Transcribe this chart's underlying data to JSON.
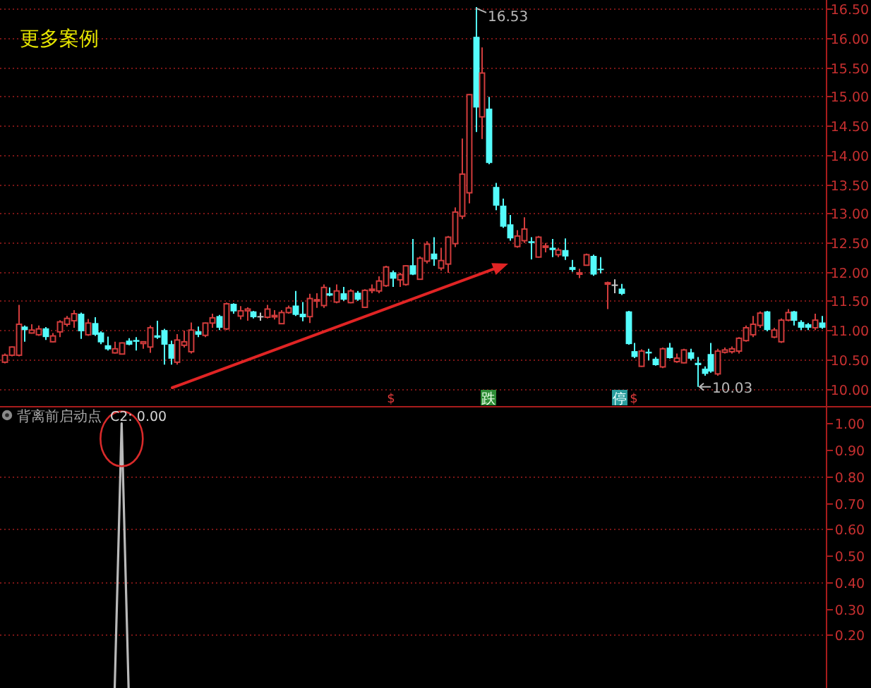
{
  "chart_data": [
    {
      "type": "candlestick",
      "title": "更多案例",
      "categories": [
        null,
        null,
        null,
        null,
        null,
        null,
        null,
        null,
        null,
        null,
        null,
        null,
        null,
        null,
        null,
        null,
        null,
        null,
        null,
        null,
        null,
        null,
        null,
        null,
        null,
        null,
        null,
        null,
        null,
        null,
        null,
        null,
        null,
        null,
        null,
        null,
        null,
        null,
        null,
        null,
        null,
        null,
        null,
        null,
        null,
        null,
        null,
        null,
        null,
        null,
        null,
        null,
        null,
        null,
        null,
        null,
        null,
        null,
        null,
        null,
        null,
        null,
        null,
        null,
        null,
        null,
        null,
        null,
        null,
        null,
        null,
        null,
        null,
        null,
        null,
        null,
        null,
        null,
        null,
        null,
        null,
        null,
        null,
        null,
        null,
        null,
        null,
        null,
        null,
        null,
        null,
        null,
        null,
        null,
        null,
        null,
        null,
        null,
        null,
        null,
        null,
        null,
        null,
        null,
        null,
        null,
        null,
        null,
        null,
        null,
        null,
        null,
        null,
        null,
        null,
        null,
        null,
        null,
        null
      ],
      "ohlc": [
        [
          10.45,
          10.6,
          10.43,
          10.57
        ],
        [
          10.57,
          10.72,
          10.55,
          10.71
        ],
        [
          10.57,
          11.43,
          10.55,
          11.1
        ],
        [
          11.06,
          11.08,
          10.8,
          11.0
        ],
        [
          10.95,
          11.1,
          10.94,
          11.0
        ],
        [
          10.92,
          11.08,
          10.9,
          11.02
        ],
        [
          11.03,
          11.05,
          10.83,
          10.88
        ],
        [
          10.8,
          10.95,
          10.79,
          10.9
        ],
        [
          10.97,
          11.17,
          10.88,
          11.14
        ],
        [
          11.1,
          11.24,
          11.06,
          11.2
        ],
        [
          11.16,
          11.34,
          11.04,
          11.28
        ],
        [
          11.28,
          11.3,
          10.85,
          10.98
        ],
        [
          10.92,
          11.19,
          10.9,
          11.12
        ],
        [
          11.12,
          11.22,
          10.9,
          10.92
        ],
        [
          10.96,
          10.98,
          10.76,
          10.79
        ],
        [
          10.74,
          10.89,
          10.65,
          10.67
        ],
        [
          10.61,
          10.8,
          10.6,
          10.68
        ],
        [
          10.59,
          10.79,
          10.59,
          10.78
        ],
        [
          10.82,
          10.86,
          10.74,
          10.75
        ],
        [
          10.83,
          10.88,
          10.65,
          10.8
        ],
        [
          10.77,
          10.8,
          10.68,
          10.8
        ],
        [
          10.71,
          11.08,
          10.61,
          11.04
        ],
        [
          10.91,
          11.16,
          10.85,
          10.87
        ],
        [
          11.0,
          11.02,
          10.41,
          10.75
        ],
        [
          10.76,
          10.82,
          10.41,
          10.51
        ],
        [
          10.45,
          10.93,
          10.41,
          10.83
        ],
        [
          10.74,
          10.99,
          10.7,
          10.8
        ],
        [
          10.63,
          11.13,
          10.6,
          11.0
        ],
        [
          10.98,
          11.06,
          10.88,
          10.92
        ],
        [
          10.91,
          11.13,
          10.88,
          11.12
        ],
        [
          11.12,
          11.28,
          11.04,
          11.21
        ],
        [
          11.24,
          11.26,
          11.0,
          11.04
        ],
        [
          11.02,
          11.47,
          11.0,
          11.45
        ],
        [
          11.45,
          11.46,
          11.28,
          11.32
        ],
        [
          11.24,
          11.41,
          11.18,
          11.33
        ],
        [
          11.33,
          11.39,
          11.16,
          11.36
        ],
        [
          11.32,
          11.33,
          11.2,
          11.22
        ],
        [
          11.24,
          11.3,
          11.16,
          11.24
        ],
        [
          11.22,
          11.43,
          11.2,
          11.36
        ],
        [
          11.23,
          11.34,
          11.18,
          11.25
        ],
        [
          11.11,
          11.34,
          11.1,
          11.3
        ],
        [
          11.3,
          11.42,
          11.28,
          11.38
        ],
        [
          11.42,
          11.67,
          11.24,
          11.26
        ],
        [
          11.28,
          11.48,
          11.15,
          11.22
        ],
        [
          11.23,
          11.62,
          11.12,
          11.54
        ],
        [
          11.5,
          11.63,
          11.38,
          11.52
        ],
        [
          11.42,
          11.78,
          11.38,
          11.73
        ],
        [
          11.63,
          11.73,
          11.58,
          11.59
        ],
        [
          11.48,
          11.78,
          11.46,
          11.67
        ],
        [
          11.63,
          11.74,
          11.5,
          11.52
        ],
        [
          11.47,
          11.7,
          11.46,
          11.67
        ],
        [
          11.64,
          11.67,
          11.5,
          11.52
        ],
        [
          11.39,
          11.7,
          11.38,
          11.68
        ],
        [
          11.68,
          11.78,
          11.63,
          11.7
        ],
        [
          11.67,
          11.92,
          11.63,
          11.84
        ],
        [
          11.76,
          12.1,
          11.74,
          12.08
        ],
        [
          11.99,
          12.02,
          11.74,
          11.88
        ],
        [
          11.86,
          11.98,
          11.74,
          11.95
        ],
        [
          11.78,
          12.11,
          11.76,
          12.1
        ],
        [
          12.11,
          12.56,
          11.94,
          11.95
        ],
        [
          11.87,
          12.26,
          11.86,
          12.23
        ],
        [
          12.18,
          12.52,
          12.14,
          12.47
        ],
        [
          12.31,
          12.59,
          12.1,
          12.21
        ],
        [
          12.06,
          12.41,
          12.02,
          12.19
        ],
        [
          12.13,
          12.61,
          11.98,
          12.59
        ],
        [
          12.48,
          13.1,
          12.42,
          13.02
        ],
        [
          12.95,
          14.28,
          12.9,
          13.67
        ],
        [
          13.35,
          15.04,
          13.17,
          15.03
        ],
        [
          16.02,
          16.53,
          14.39,
          14.81
        ],
        [
          14.65,
          15.84,
          14.27,
          15.4
        ],
        [
          14.79,
          14.99,
          13.84,
          13.86
        ],
        [
          13.45,
          13.52,
          13.05,
          13.13
        ],
        [
          13.13,
          13.25,
          12.75,
          12.77
        ],
        [
          12.81,
          12.97,
          12.53,
          12.57
        ],
        [
          12.43,
          12.71,
          12.41,
          12.61
        ],
        [
          12.53,
          12.93,
          12.49,
          12.73
        ],
        [
          12.52,
          12.59,
          12.21,
          12.49
        ],
        [
          12.25,
          12.61,
          12.24,
          12.59
        ],
        [
          12.42,
          12.49,
          12.33,
          12.44
        ],
        [
          12.41,
          12.56,
          12.25,
          12.37
        ],
        [
          12.29,
          12.41,
          12.25,
          12.37
        ],
        [
          12.37,
          12.57,
          12.2,
          12.26
        ],
        [
          12.08,
          12.2,
          12.0,
          12.03
        ],
        [
          11.97,
          12.05,
          11.89,
          11.98
        ],
        [
          12.11,
          12.31,
          12.1,
          12.29
        ],
        [
          12.27,
          12.29,
          11.93,
          11.95
        ],
        [
          12.05,
          12.25,
          11.97,
          12.03
        ],
        [
          11.79,
          11.83,
          11.36,
          11.81
        ],
        [
          11.78,
          11.87,
          11.63,
          11.78
        ],
        [
          11.71,
          11.79,
          11.6,
          11.62
        ],
        [
          11.32,
          11.33,
          10.75,
          10.76
        ],
        [
          10.64,
          10.78,
          10.52,
          10.54
        ],
        [
          10.38,
          10.67,
          10.37,
          10.64
        ],
        [
          10.63,
          10.68,
          10.48,
          10.6
        ],
        [
          10.51,
          10.54,
          10.39,
          10.4
        ],
        [
          10.37,
          10.7,
          10.35,
          10.68
        ],
        [
          10.7,
          10.78,
          10.51,
          10.52
        ],
        [
          10.46,
          10.6,
          10.44,
          10.52
        ],
        [
          10.44,
          10.68,
          10.43,
          10.66
        ],
        [
          10.62,
          10.68,
          10.48,
          10.51
        ],
        [
          10.44,
          10.54,
          10.03,
          10.4
        ],
        [
          10.34,
          10.38,
          10.22,
          10.25
        ],
        [
          10.59,
          10.78,
          10.27,
          10.29
        ],
        [
          10.25,
          10.68,
          10.22,
          10.64
        ],
        [
          10.62,
          10.7,
          10.6,
          10.66
        ],
        [
          10.63,
          10.72,
          10.6,
          10.68
        ],
        [
          10.64,
          10.88,
          10.6,
          10.86
        ],
        [
          10.82,
          11.08,
          10.8,
          11.04
        ],
        [
          10.92,
          11.24,
          10.88,
          11.1
        ],
        [
          11.08,
          11.32,
          11.04,
          11.29
        ],
        [
          11.32,
          11.33,
          10.98,
          11.0
        ],
        [
          10.88,
          11.04,
          10.86,
          11.0
        ],
        [
          10.8,
          11.2,
          10.78,
          11.17
        ],
        [
          11.17,
          11.36,
          11.15,
          11.3
        ],
        [
          11.32,
          11.33,
          11.08,
          11.16
        ],
        [
          11.14,
          11.17,
          11.0,
          11.04
        ],
        [
          11.1,
          11.12,
          11.0,
          11.04
        ],
        [
          11.04,
          11.28,
          11.0,
          11.17
        ],
        [
          11.13,
          11.24,
          11.02,
          11.04
        ]
      ],
      "colors": [
        "#d23c3c",
        "#d23c3c",
        "#d23c3c",
        "#54fcfc",
        "#d23c3c",
        "#d23c3c",
        "#54fcfc",
        "#d23c3c",
        "#d23c3c",
        "#d23c3c",
        "#d23c3c",
        "#54fcfc",
        "#d23c3c",
        "#54fcfc",
        "#54fcfc",
        "#54fcfc",
        "#d23c3c",
        "#d23c3c",
        "#54fcfc",
        "#54fcfc",
        "#d23c3c",
        "#d23c3c",
        "#54fcfc",
        "#54fcfc",
        "#54fcfc",
        "#d23c3c",
        "#d23c3c",
        "#d23c3c",
        "#54fcfc",
        "#d23c3c",
        "#d23c3c",
        "#54fcfc",
        "#d23c3c",
        "#54fcfc",
        "#d23c3c",
        "#d23c3c",
        "#54fcfc",
        "#c8c8c8",
        "#d23c3c",
        "#d23c3c",
        "#d23c3c",
        "#d23c3c",
        "#54fcfc",
        "#54fcfc",
        "#d23c3c",
        "#d23c3c",
        "#d23c3c",
        "#54fcfc",
        "#d23c3c",
        "#54fcfc",
        "#d23c3c",
        "#54fcfc",
        "#d23c3c",
        "#d23c3c",
        "#d23c3c",
        "#d23c3c",
        "#54fcfc",
        "#d23c3c",
        "#d23c3c",
        "#54fcfc",
        "#d23c3c",
        "#d23c3c",
        "#54fcfc",
        "#d23c3c",
        "#d23c3c",
        "#d23c3c",
        "#d23c3c",
        "#d23c3c",
        "#54fcfc",
        "#d23c3c",
        "#54fcfc",
        "#54fcfc",
        "#54fcfc",
        "#54fcfc",
        "#d23c3c",
        "#d23c3c",
        "#54fcfc",
        "#d23c3c",
        "#d23c3c",
        "#54fcfc",
        "#d23c3c",
        "#54fcfc",
        "#54fcfc",
        "#d23c3c",
        "#d23c3c",
        "#54fcfc",
        "#54fcfc",
        "#d23c3c",
        "#c8c8c8",
        "#54fcfc",
        "#54fcfc",
        "#54fcfc",
        "#d23c3c",
        "#54fcfc",
        "#54fcfc",
        "#d23c3c",
        "#54fcfc",
        "#d23c3c",
        "#d23c3c",
        "#54fcfc",
        "#54fcfc",
        "#54fcfc",
        "#54fcfc",
        "#d23c3c",
        "#d23c3c",
        "#d23c3c",
        "#d23c3c",
        "#d23c3c",
        "#d23c3c",
        "#d23c3c",
        "#54fcfc",
        "#d23c3c",
        "#d23c3c",
        "#d23c3c",
        "#54fcfc",
        "#54fcfc",
        "#54fcfc",
        "#d23c3c",
        "#54fcfc"
      ],
      "ylim": [
        9.7,
        16.65
      ],
      "yticks": [
        {
          "value": 10,
          "label": "10.00"
        },
        {
          "value": 10.5,
          "label": "10.50"
        },
        {
          "value": 11,
          "label": "11.00"
        },
        {
          "value": 11.5,
          "label": "11.50"
        },
        {
          "value": 12,
          "label": "12.00"
        },
        {
          "value": 12.5,
          "label": "12.50"
        },
        {
          "value": 13,
          "label": "13.00"
        },
        {
          "value": 13.5,
          "label": "13.50"
        },
        {
          "value": 14,
          "label": "14.00"
        },
        {
          "value": 14.5,
          "label": "14.50"
        },
        {
          "value": 15,
          "label": "15.00"
        },
        {
          "value": 15.5,
          "label": "15.50"
        },
        {
          "value": 16,
          "label": "16.00"
        },
        {
          "value": 16.5,
          "label": "16.50"
        }
      ],
      "grid": true,
      "annotations": [
        "16.53",
        "10.03",
        "$",
        "跌",
        "停",
        "$"
      ]
    },
    {
      "type": "line",
      "title": "背离前启动点",
      "categories": [
        null,
        null,
        null,
        null,
        null,
        null,
        null,
        null,
        null,
        null,
        null,
        null,
        null,
        null,
        null,
        null,
        null,
        null,
        null,
        null,
        null,
        null,
        null,
        null,
        null,
        null,
        null,
        null,
        null,
        null,
        null,
        null,
        null,
        null,
        null,
        null,
        null,
        null,
        null,
        null,
        null,
        null,
        null,
        null,
        null,
        null,
        null,
        null,
        null,
        null,
        null,
        null,
        null,
        null,
        null,
        null,
        null,
        null,
        null,
        null,
        null,
        null,
        null,
        null,
        null,
        null,
        null,
        null,
        null,
        null,
        null,
        null,
        null,
        null,
        null,
        null,
        null,
        null,
        null,
        null,
        null,
        null,
        null,
        null,
        null,
        null,
        null,
        null,
        null,
        null,
        null,
        null,
        null,
        null,
        null,
        null,
        null,
        null,
        null,
        null,
        null,
        null,
        null,
        null,
        null,
        null,
        null,
        null,
        null,
        null,
        null,
        null,
        null,
        null,
        null,
        null,
        null,
        null,
        null
      ],
      "series": [
        {
          "color": "#b9b9b9",
          "values": [
            null,
            null,
            null,
            null,
            null,
            null,
            null,
            null,
            null,
            null,
            null,
            null,
            null,
            null,
            null,
            null,
            0,
            1,
            0,
            null,
            null,
            null,
            null,
            null,
            null,
            null,
            null,
            null,
            null,
            null,
            null,
            null,
            null,
            null,
            null,
            null,
            null,
            null,
            null,
            null,
            null,
            null,
            null,
            null,
            null,
            null,
            null,
            null,
            null,
            null,
            null,
            null,
            null,
            null,
            null,
            null,
            null,
            null,
            null,
            null,
            null,
            null,
            null,
            null,
            null,
            null,
            null,
            null,
            null,
            null,
            null,
            null,
            null,
            null,
            null,
            null,
            null,
            null,
            null,
            null,
            null,
            null,
            null,
            null,
            null,
            null,
            null,
            null,
            null,
            null,
            null,
            null,
            null,
            null,
            null,
            null,
            null,
            null,
            null,
            null,
            null,
            null,
            null,
            null,
            null,
            null,
            null,
            null,
            null,
            null,
            null,
            null,
            null,
            null,
            null,
            null,
            null,
            null,
            null
          ]
        }
      ],
      "ylim": [
        0,
        1.06
      ],
      "yticks": [
        {
          "value": 0.2,
          "label": "0.20"
        },
        {
          "value": 0.3,
          "label": "0.30"
        },
        {
          "value": 0.4,
          "label": "0.40"
        },
        {
          "value": 0.5,
          "label": "0.50"
        },
        {
          "value": 0.6,
          "label": "0.60"
        },
        {
          "value": 0.7,
          "label": "0.70"
        },
        {
          "value": 0.8,
          "label": "0.80"
        },
        {
          "value": 0.9,
          "label": "0.90"
        },
        {
          "value": 1,
          "label": "1.00"
        }
      ],
      "ref_lines": [
        {
          "axis": "y",
          "value": 0.8,
          "color": "#7a1616",
          "line_style": "dotted"
        },
        {
          "axis": "y",
          "value": 0.6,
          "color": "#7a1616",
          "line_style": "dotted"
        },
        {
          "axis": "y",
          "value": 0.4,
          "color": "#7a1616",
          "line_style": "dotted"
        },
        {
          "axis": "y",
          "value": 0.2,
          "color": "#7a1616",
          "line_style": "dotted"
        }
      ],
      "marker": "none",
      "line_style": "solid",
      "annotations": [
        "C2: 0.00"
      ]
    }
  ]
}
